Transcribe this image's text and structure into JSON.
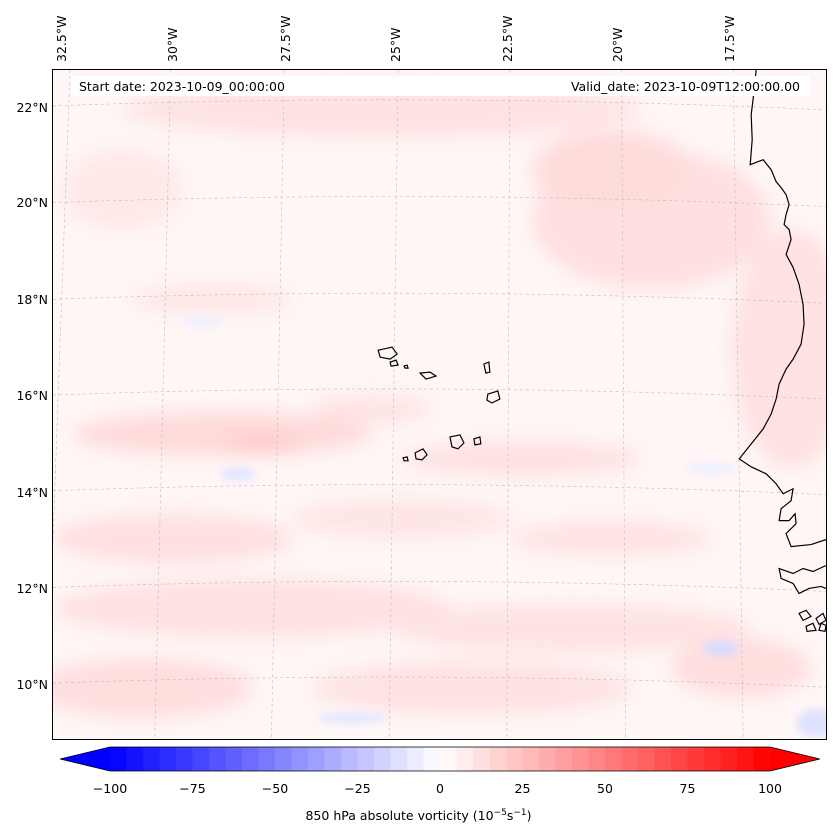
{
  "map": {
    "start_date_text": "Start date: 2023-10-09_00:00:00",
    "valid_date_text": "Valid_date: 2023-10-09T12:00:00.00",
    "longitude_labels": [
      "32.5°W",
      "30°W",
      "27.5°W",
      "25°W",
      "22.5°W",
      "20°W",
      "17.5°W"
    ],
    "latitude_labels": [
      "22°N",
      "20°N",
      "18°N",
      "16°N",
      "14°N",
      "12°N",
      "10°N"
    ],
    "field": "850 hPa absolute vorticity",
    "colormap": "bwr",
    "gridlines": true,
    "coastline_color": "#000000"
  },
  "colorbar": {
    "label_main": "850 hPa absolute vorticity (10",
    "label_exp1": "−5",
    "label_mid": "s",
    "label_exp2": "−1",
    "label_end": ")",
    "ticks": [
      "−100",
      "−75",
      "−50",
      "−25",
      "0",
      "25",
      "50",
      "75",
      "100"
    ],
    "range": [
      -100,
      100
    ],
    "extend": "both",
    "color_min": "#0000ff",
    "color_mid": "#ffffff",
    "color_max": "#ff0000"
  }
}
